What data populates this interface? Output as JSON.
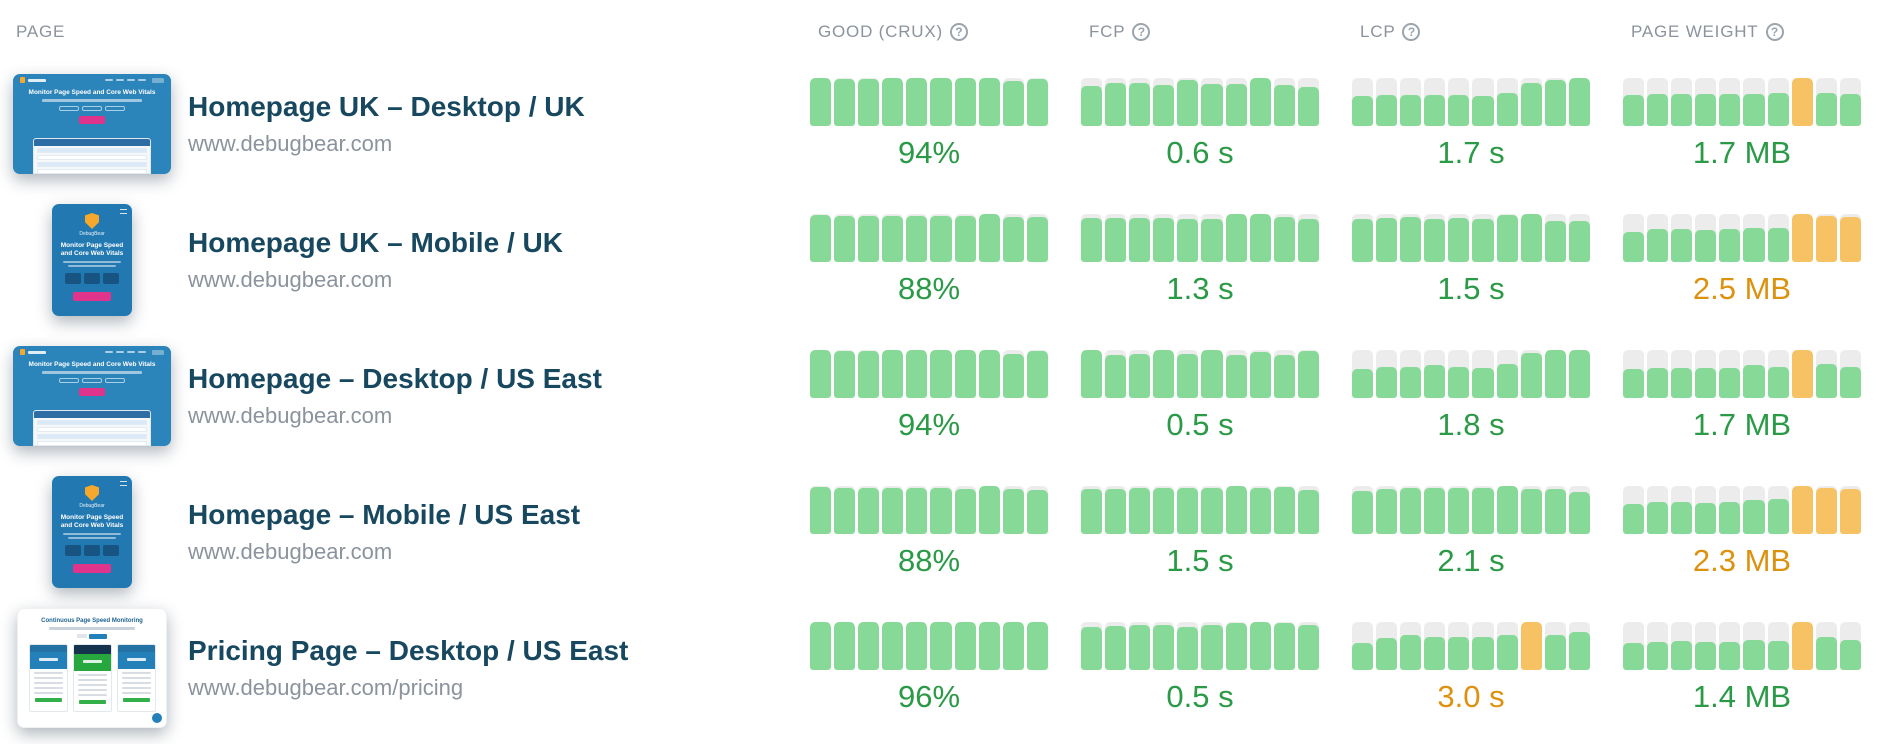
{
  "colors": {
    "green_bar": "#87d998",
    "orange_bar": "#f7c263",
    "bar_track": "#ececec",
    "good_text": "#2a9a46",
    "warn_text": "#dc920f",
    "title_text": "#17485f",
    "muted_text": "#8b939d",
    "thumb_blue": "#2b84ba",
    "thumb_pink": "#e0338c"
  },
  "header": {
    "page_label": "PAGE",
    "columns": [
      {
        "key": "good",
        "label": "GOOD (CRUX)",
        "help_icon": "question-circle-icon"
      },
      {
        "key": "fcp",
        "label": "FCP",
        "help_icon": "question-circle-icon"
      },
      {
        "key": "lcp",
        "label": "LCP",
        "help_icon": "question-circle-icon"
      },
      {
        "key": "weight",
        "label": "PAGE WEIGHT",
        "help_icon": "question-circle-icon"
      }
    ]
  },
  "thumbnails": {
    "desktop": {
      "heading": "Monitor Page Speed and Core Web Vitals"
    },
    "mobile": {
      "brand": "DebugBear",
      "heading": "Monitor Page Speed and Core Web Vitals"
    },
    "pricing": {
      "heading": "Continuous Page Speed Monitoring"
    }
  },
  "rows": [
    {
      "title": "Homepage UK – Desktop / UK",
      "url": "www.debugbear.com",
      "thumbnail": "desktop",
      "metrics": {
        "good": {
          "value": "94%",
          "status": "good",
          "bars": [
            0.98,
            0.96,
            0.96,
            0.98,
            1,
            0.98,
            0.98,
            0.98,
            0.92,
            0.96
          ],
          "orange_bars": []
        },
        "fcp": {
          "value": "0.6 s",
          "status": "good",
          "bars": [
            0.82,
            0.88,
            0.88,
            0.84,
            0.95,
            0.86,
            0.86,
            1,
            0.84,
            0.8
          ],
          "orange_bars": []
        },
        "lcp": {
          "value": "1.7 s",
          "status": "good",
          "bars": [
            0.62,
            0.63,
            0.63,
            0.64,
            0.63,
            0.62,
            0.68,
            0.88,
            0.95,
            1
          ],
          "orange_bars": []
        },
        "weight": {
          "value": "1.7 MB",
          "status": "good",
          "bars": [
            0.63,
            0.65,
            0.65,
            0.65,
            0.65,
            0.66,
            0.68,
            1,
            0.67,
            0.66
          ],
          "orange_bars": [
            7
          ]
        }
      }
    },
    {
      "title": "Homepage UK – Mobile / UK",
      "url": "www.debugbear.com",
      "thumbnail": "mobile",
      "metrics": {
        "good": {
          "value": "88%",
          "status": "good",
          "bars": [
            0.97,
            0.95,
            0.95,
            0.95,
            0.95,
            0.95,
            0.95,
            1,
            0.92,
            0.92
          ],
          "orange_bars": []
        },
        "fcp": {
          "value": "1.3 s",
          "status": "good",
          "bars": [
            0.9,
            0.9,
            0.9,
            0.9,
            0.89,
            0.89,
            1,
            1,
            0.93,
            0.89
          ],
          "orange_bars": []
        },
        "lcp": {
          "value": "1.5 s",
          "status": "good",
          "bars": [
            0.88,
            0.9,
            0.92,
            0.88,
            0.9,
            0.88,
            0.96,
            1,
            0.85,
            0.85
          ],
          "orange_bars": []
        },
        "weight": {
          "value": "2.5 MB",
          "status": "warn",
          "bars": [
            0.62,
            0.67,
            0.67,
            0.65,
            0.67,
            0.7,
            0.7,
            1,
            0.95,
            0.92
          ],
          "orange_bars": [
            7,
            8,
            9
          ]
        }
      }
    },
    {
      "title": "Homepage – Desktop / US East",
      "url": "www.debugbear.com",
      "thumbnail": "desktop",
      "metrics": {
        "good": {
          "value": "94%",
          "status": "good",
          "bars": [
            1,
            0.97,
            0.97,
            1,
            1,
            0.98,
            0.98,
            0.98,
            0.9,
            0.97
          ],
          "orange_bars": []
        },
        "fcp": {
          "value": "0.5 s",
          "status": "good",
          "bars": [
            1,
            0.88,
            0.9,
            1,
            0.9,
            1,
            0.88,
            0.94,
            0.88,
            0.96
          ],
          "orange_bars": []
        },
        "lcp": {
          "value": "1.8 s",
          "status": "good",
          "bars": [
            0.6,
            0.64,
            0.64,
            0.67,
            0.64,
            0.61,
            0.7,
            0.92,
            1,
            1
          ],
          "orange_bars": []
        },
        "weight": {
          "value": "1.7 MB",
          "status": "good",
          "bars": [
            0.6,
            0.62,
            0.62,
            0.62,
            0.62,
            0.67,
            0.64,
            1,
            0.7,
            0.64
          ],
          "orange_bars": [
            7
          ]
        }
      }
    },
    {
      "title": "Homepage – Mobile / US East",
      "url": "www.debugbear.com",
      "thumbnail": "mobile",
      "metrics": {
        "good": {
          "value": "88%",
          "status": "good",
          "bars": [
            0.97,
            0.95,
            0.95,
            0.95,
            0.95,
            0.95,
            0.93,
            1,
            0.92,
            0.9
          ],
          "orange_bars": []
        },
        "fcp": {
          "value": "1.5 s",
          "status": "good",
          "bars": [
            0.93,
            0.93,
            0.95,
            0.95,
            0.95,
            0.95,
            1,
            0.95,
            0.97,
            0.9
          ],
          "orange_bars": []
        },
        "lcp": {
          "value": "2.1 s",
          "status": "good",
          "bars": [
            0.88,
            0.92,
            0.95,
            0.95,
            0.95,
            0.95,
            1,
            0.93,
            0.92,
            0.87
          ],
          "orange_bars": []
        },
        "weight": {
          "value": "2.3 MB",
          "status": "warn",
          "bars": [
            0.62,
            0.65,
            0.65,
            0.63,
            0.65,
            0.7,
            0.72,
            1,
            0.95,
            0.93
          ],
          "orange_bars": [
            7,
            8,
            9
          ]
        }
      }
    },
    {
      "title": "Pricing Page – Desktop / US East",
      "url": "www.debugbear.com/pricing",
      "thumbnail": "pricing",
      "metrics": {
        "good": {
          "value": "96%",
          "status": "good",
          "bars": [
            1,
            0.98,
            0.98,
            0.98,
            0.98,
            1,
            1,
            0.98,
            1,
            0.98
          ],
          "orange_bars": []
        },
        "fcp": {
          "value": "0.5 s",
          "status": "good",
          "bars": [
            0.88,
            0.9,
            0.93,
            0.93,
            0.88,
            0.93,
            0.96,
            1,
            0.96,
            0.93
          ],
          "orange_bars": []
        },
        "lcp": {
          "value": "3.0 s",
          "status": "warn",
          "bars": [
            0.55,
            0.65,
            0.72,
            0.68,
            0.68,
            0.68,
            0.72,
            1,
            0.72,
            0.78
          ],
          "orange_bars": [
            7
          ]
        },
        "weight": {
          "value": "1.4 MB",
          "status": "good",
          "bars": [
            0.55,
            0.58,
            0.6,
            0.58,
            0.58,
            0.62,
            0.6,
            1,
            0.68,
            0.62
          ],
          "orange_bars": [
            7
          ]
        }
      }
    }
  ]
}
